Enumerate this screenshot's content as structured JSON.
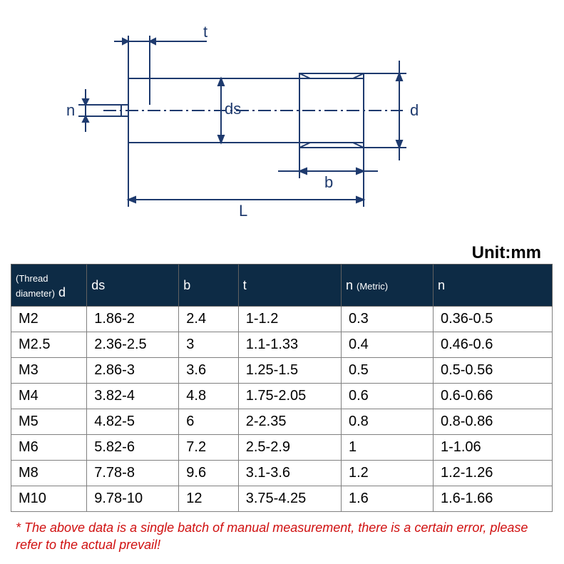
{
  "diagram": {
    "labels": {
      "t": "t",
      "n": "n",
      "ds": "ds",
      "d": "d",
      "b": "b",
      "L": "L"
    },
    "colors": {
      "stroke": "#1e3a6e",
      "stroke_width": 2
    }
  },
  "unit_label": "Unit:mm",
  "table": {
    "header_bg": "#0d2b45",
    "header_text_color": "#ffffff",
    "cell_text_color": "#000000",
    "border_color": "#808080",
    "columns": [
      {
        "label": "d",
        "sub": "(Thread diameter)"
      },
      {
        "label": "ds",
        "sub": ""
      },
      {
        "label": "b",
        "sub": ""
      },
      {
        "label": "t",
        "sub": ""
      },
      {
        "label": "n",
        "sub": "(Metric)"
      },
      {
        "label": "n",
        "sub": ""
      }
    ],
    "rows": [
      [
        "M2",
        "1.86-2",
        "2.4",
        "1-1.2",
        "0.3",
        "0.36-0.5"
      ],
      [
        "M2.5",
        "2.36-2.5",
        "3",
        "1.1-1.33",
        "0.4",
        "0.46-0.6"
      ],
      [
        "M3",
        "2.86-3",
        "3.6",
        "1.25-1.5",
        "0.5",
        "0.5-0.56"
      ],
      [
        "M4",
        "3.82-4",
        "4.8",
        "1.75-2.05",
        "0.6",
        "0.6-0.66"
      ],
      [
        "M5",
        "4.82-5",
        "6",
        "2-2.35",
        "0.8",
        "0.8-0.86"
      ],
      [
        "M6",
        "5.82-6",
        "7.2",
        "2.5-2.9",
        "1",
        "1-1.06"
      ],
      [
        "M8",
        "7.78-8",
        "9.6",
        "3.1-3.6",
        "1.2",
        "1.2-1.26"
      ],
      [
        "M10",
        "9.78-10",
        "12",
        "3.75-4.25",
        "1.6",
        "1.6-1.66"
      ]
    ]
  },
  "footnote": "* The above data is a single batch of manual measurement, there is a certain error, please refer to the actual prevail!"
}
